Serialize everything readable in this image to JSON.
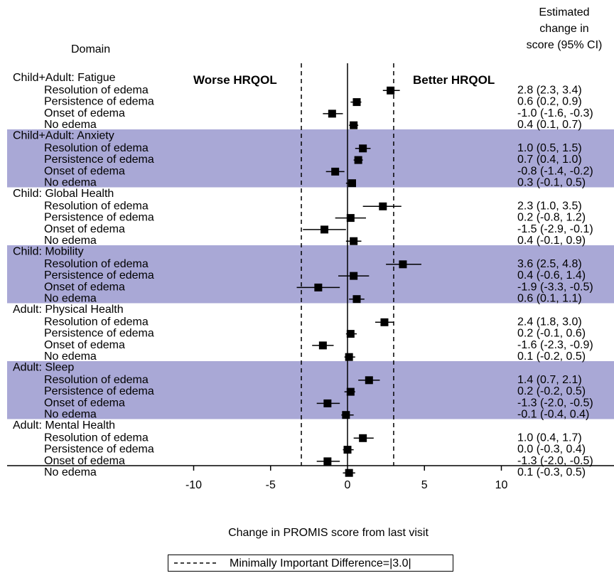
{
  "chart_data": {
    "type": "forest",
    "header_domain": "Domain",
    "header_estimate": [
      "Estimated",
      "change in",
      "score (95% CI)"
    ],
    "label_worse": "Worse HRQOL",
    "label_better": "Better HRQOL",
    "xlabel": "Change in PROMIS score from last visit",
    "xlim": [
      -13.5,
      17
    ],
    "xticks": [
      -10,
      -5,
      0,
      5,
      10
    ],
    "mid_value": 3.0,
    "legend_text": "Minimally Important Difference=|3.0|",
    "band_color": "#a9a8d6",
    "groups": [
      {
        "name": "Child+Adult: Fatigue",
        "shaded": false,
        "rows": [
          {
            "label": "Resolution of edema",
            "est": 2.8,
            "lo": 2.3,
            "hi": 3.4,
            "text": "2.8 (2.3, 3.4)"
          },
          {
            "label": "Persistence of edema",
            "est": 0.6,
            "lo": 0.2,
            "hi": 0.9,
            "text": "0.6 (0.2, 0.9)"
          },
          {
            "label": "Onset of edema",
            "est": -1.0,
            "lo": -1.6,
            "hi": -0.3,
            "text": "-1.0 (-1.6, -0.3)"
          },
          {
            "label": "No edema",
            "est": 0.4,
            "lo": 0.1,
            "hi": 0.7,
            "text": "0.4 (0.1, 0.7)"
          }
        ]
      },
      {
        "name": "Child+Adult: Anxiety",
        "shaded": true,
        "rows": [
          {
            "label": "Resolution of edema",
            "est": 1.0,
            "lo": 0.5,
            "hi": 1.5,
            "text": "1.0 (0.5, 1.5)"
          },
          {
            "label": "Persistence of edema",
            "est": 0.7,
            "lo": 0.4,
            "hi": 1.0,
            "text": "0.7 (0.4, 1.0)"
          },
          {
            "label": "Onset of edema",
            "est": -0.8,
            "lo": -1.4,
            "hi": -0.2,
            "text": "-0.8 (-1.4, -0.2)"
          },
          {
            "label": "No edema",
            "est": 0.3,
            "lo": -0.1,
            "hi": 0.5,
            "text": "0.3 (-0.1, 0.5)"
          }
        ]
      },
      {
        "name": "Child: Global Health",
        "shaded": false,
        "rows": [
          {
            "label": "Resolution of edema",
            "est": 2.3,
            "lo": 1.0,
            "hi": 3.5,
            "text": "2.3 (1.0, 3.5)"
          },
          {
            "label": "Persistence of edema",
            "est": 0.2,
            "lo": -0.8,
            "hi": 1.2,
            "text": "0.2 (-0.8, 1.2)"
          },
          {
            "label": "Onset of edema",
            "est": -1.5,
            "lo": -2.9,
            "hi": -0.1,
            "text": "-1.5 (-2.9, -0.1)"
          },
          {
            "label": "No edema",
            "est": 0.4,
            "lo": -0.1,
            "hi": 0.9,
            "text": "0.4 (-0.1, 0.9)"
          }
        ]
      },
      {
        "name": "Child: Mobility",
        "shaded": true,
        "rows": [
          {
            "label": "Resolution of edema",
            "est": 3.6,
            "lo": 2.5,
            "hi": 4.8,
            "text": "3.6 (2.5, 4.8)"
          },
          {
            "label": "Persistence of edema",
            "est": 0.4,
            "lo": -0.6,
            "hi": 1.4,
            "text": "0.4 (-0.6, 1.4)"
          },
          {
            "label": "Onset of edema",
            "est": -1.9,
            "lo": -3.3,
            "hi": -0.5,
            "text": "-1.9 (-3.3, -0.5)"
          },
          {
            "label": "No edema",
            "est": 0.6,
            "lo": 0.1,
            "hi": 1.1,
            "text": "0.6 (0.1, 1.1)"
          }
        ]
      },
      {
        "name": "Adult: Physical Health",
        "shaded": false,
        "rows": [
          {
            "label": "Resolution of edema",
            "est": 2.4,
            "lo": 1.8,
            "hi": 3.0,
            "text": "2.4 (1.8, 3.0)"
          },
          {
            "label": "Persistence of edema",
            "est": 0.2,
            "lo": -0.1,
            "hi": 0.6,
            "text": "0.2 (-0.1, 0.6)"
          },
          {
            "label": "Onset of edema",
            "est": -1.6,
            "lo": -2.3,
            "hi": -0.9,
            "text": "-1.6 (-2.3, -0.9)"
          },
          {
            "label": "No edema",
            "est": 0.1,
            "lo": -0.2,
            "hi": 0.5,
            "text": "0.1 (-0.2, 0.5)"
          }
        ]
      },
      {
        "name": "Adult: Sleep",
        "shaded": true,
        "rows": [
          {
            "label": "Resolution of edema",
            "est": 1.4,
            "lo": 0.7,
            "hi": 2.1,
            "text": "1.4 (0.7, 2.1)"
          },
          {
            "label": "Persistence of edema",
            "est": 0.2,
            "lo": -0.2,
            "hi": 0.5,
            "text": "0.2 (-0.2, 0.5)"
          },
          {
            "label": "Onset of edema",
            "est": -1.3,
            "lo": -2.0,
            "hi": -0.5,
            "text": "-1.3 (-2.0, -0.5)"
          },
          {
            "label": "No edema",
            "est": -0.1,
            "lo": -0.4,
            "hi": 0.4,
            "text": "-0.1 (-0.4, 0.4)"
          }
        ]
      },
      {
        "name": "Adult: Mental Health",
        "shaded": false,
        "rows": [
          {
            "label": "Resolution of edema",
            "est": 1.0,
            "lo": 0.4,
            "hi": 1.7,
            "text": "1.0 (0.4, 1.7)"
          },
          {
            "label": "Persistence of edema",
            "est": 0.0,
            "lo": -0.3,
            "hi": 0.4,
            "text": "0.0 (-0.3, 0.4)"
          },
          {
            "label": "Onset of edema",
            "est": -1.3,
            "lo": -2.0,
            "hi": -0.5,
            "text": "-1.3 (-2.0, -0.5)"
          },
          {
            "label": "No edema",
            "est": 0.1,
            "lo": -0.3,
            "hi": 0.5,
            "text": "0.1 (-0.3, 0.5)"
          }
        ]
      }
    ]
  }
}
